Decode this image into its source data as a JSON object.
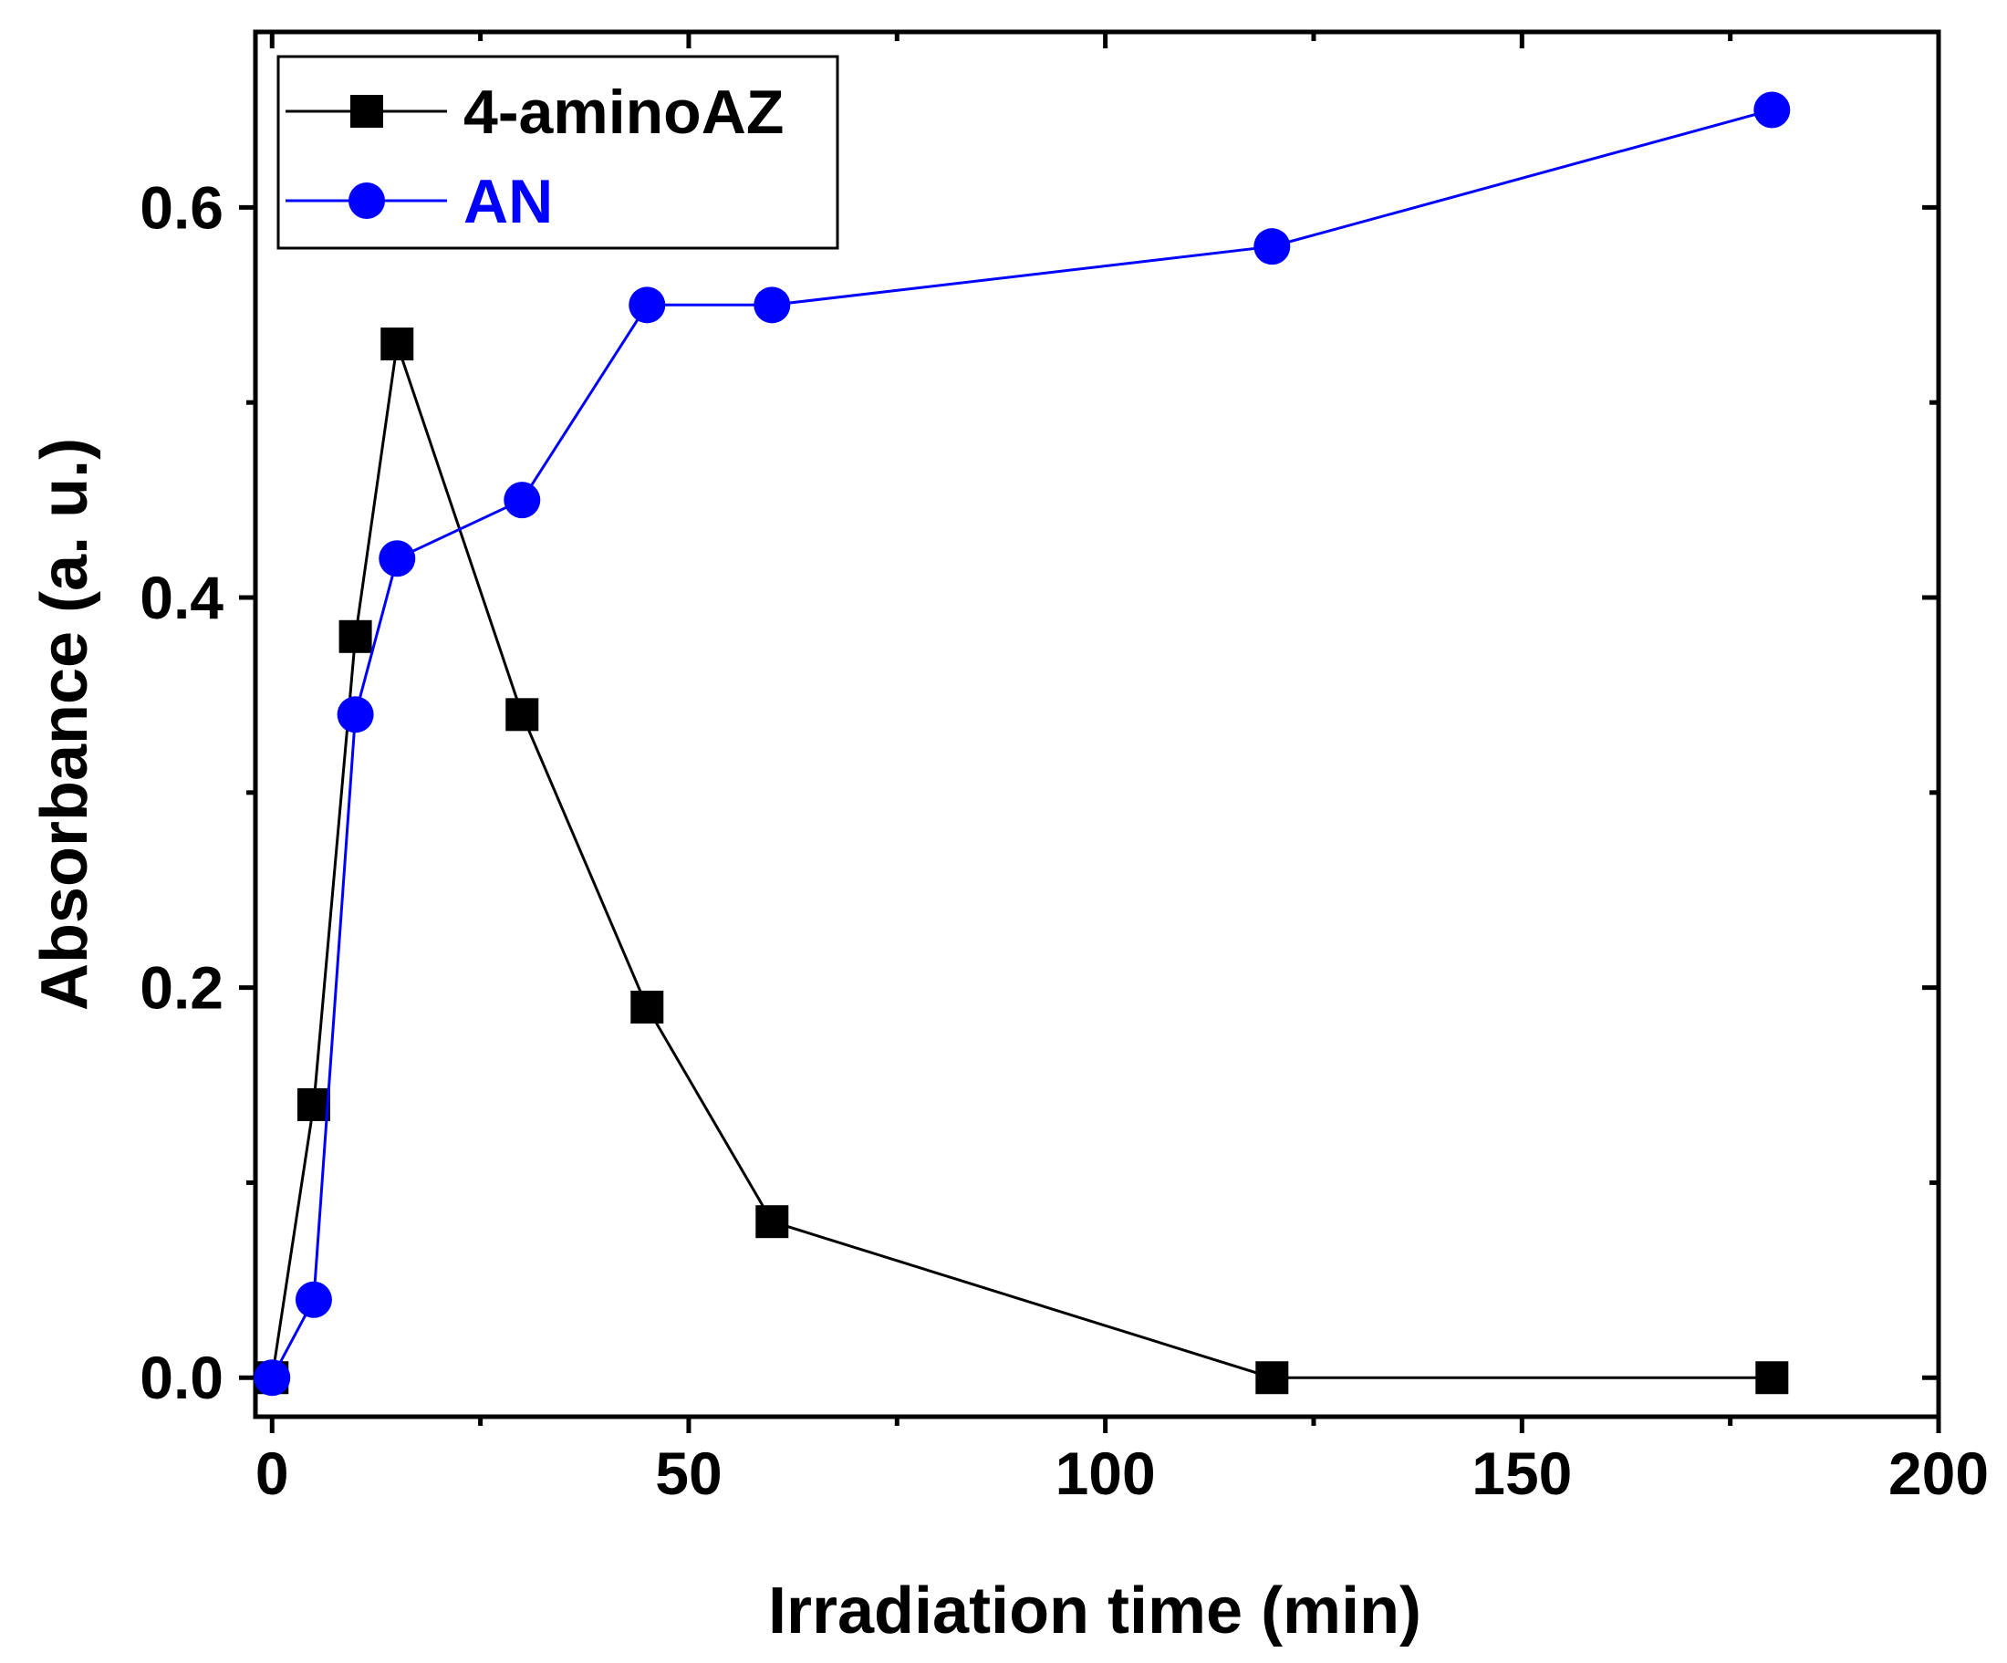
{
  "chart_data": {
    "type": "line",
    "title": "",
    "xlabel": "Irradiation time (min)",
    "ylabel": "Absorbance (a. u.)",
    "xlim": [
      -2,
      200
    ],
    "ylim": [
      -0.02,
      0.69
    ],
    "xticks": [
      0,
      50,
      100,
      150,
      200
    ],
    "xtick_labels": [
      "0",
      "50",
      "100",
      "150",
      "200"
    ],
    "xminor": [
      25,
      75,
      125,
      175
    ],
    "yticks": [
      0.0,
      0.2,
      0.4,
      0.6
    ],
    "ytick_labels": [
      "0.0",
      "0.2",
      "0.4",
      "0.6"
    ],
    "yminor": [
      0.1,
      0.3,
      0.5
    ],
    "grid": false,
    "legend_position": "top-left",
    "series": [
      {
        "name": "4-aminoAZ",
        "color": "#000000",
        "marker": "square",
        "x": [
          0,
          5,
          10,
          15,
          30,
          45,
          60,
          120,
          180
        ],
        "y": [
          0.0,
          0.14,
          0.38,
          0.53,
          0.34,
          0.19,
          0.08,
          0.0,
          0.0
        ]
      },
      {
        "name": "AN",
        "color": "#0000ff",
        "marker": "circle",
        "x": [
          0,
          5,
          10,
          15,
          30,
          45,
          60,
          120,
          180
        ],
        "y": [
          0.0,
          0.04,
          0.34,
          0.42,
          0.45,
          0.55,
          0.55,
          0.58,
          0.65
        ]
      }
    ]
  }
}
